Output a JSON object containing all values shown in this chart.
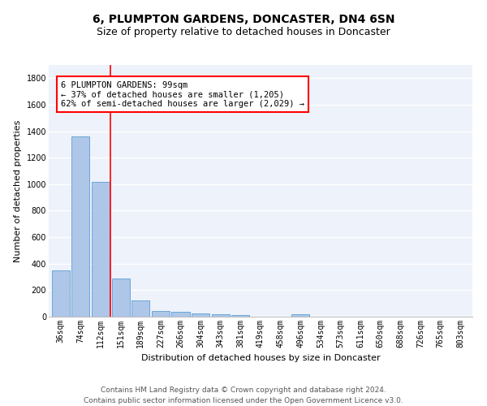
{
  "title": "6, PLUMPTON GARDENS, DONCASTER, DN4 6SN",
  "subtitle": "Size of property relative to detached houses in Doncaster",
  "xlabel": "Distribution of detached houses by size in Doncaster",
  "ylabel": "Number of detached properties",
  "footer_line1": "Contains HM Land Registry data © Crown copyright and database right 2024.",
  "footer_line2": "Contains public sector information licensed under the Open Government Licence v3.0.",
  "categories": [
    "36sqm",
    "74sqm",
    "112sqm",
    "151sqm",
    "189sqm",
    "227sqm",
    "266sqm",
    "304sqm",
    "343sqm",
    "381sqm",
    "419sqm",
    "458sqm",
    "496sqm",
    "534sqm",
    "573sqm",
    "611sqm",
    "650sqm",
    "688sqm",
    "726sqm",
    "765sqm",
    "803sqm"
  ],
  "values": [
    350,
    1360,
    1020,
    290,
    125,
    40,
    35,
    27,
    20,
    15,
    0,
    0,
    20,
    0,
    0,
    0,
    0,
    0,
    0,
    0,
    0
  ],
  "bar_color": "#aec6e8",
  "bar_edge_color": "#5a9fd4",
  "vline_x": 2.5,
  "vline_color": "red",
  "annotation_text": "6 PLUMPTON GARDENS: 99sqm\n← 37% of detached houses are smaller (1,205)\n62% of semi-detached houses are larger (2,029) →",
  "annotation_box_color": "white",
  "annotation_box_edge_color": "red",
  "ylim": [
    0,
    1900
  ],
  "yticks": [
    0,
    200,
    400,
    600,
    800,
    1000,
    1200,
    1400,
    1600,
    1800
  ],
  "bg_color": "#eef2fb",
  "grid_color": "#ffffff",
  "title_fontsize": 10,
  "subtitle_fontsize": 9,
  "axis_label_fontsize": 8,
  "tick_fontsize": 7,
  "annotation_fontsize": 7.5,
  "footer_fontsize": 6.5
}
